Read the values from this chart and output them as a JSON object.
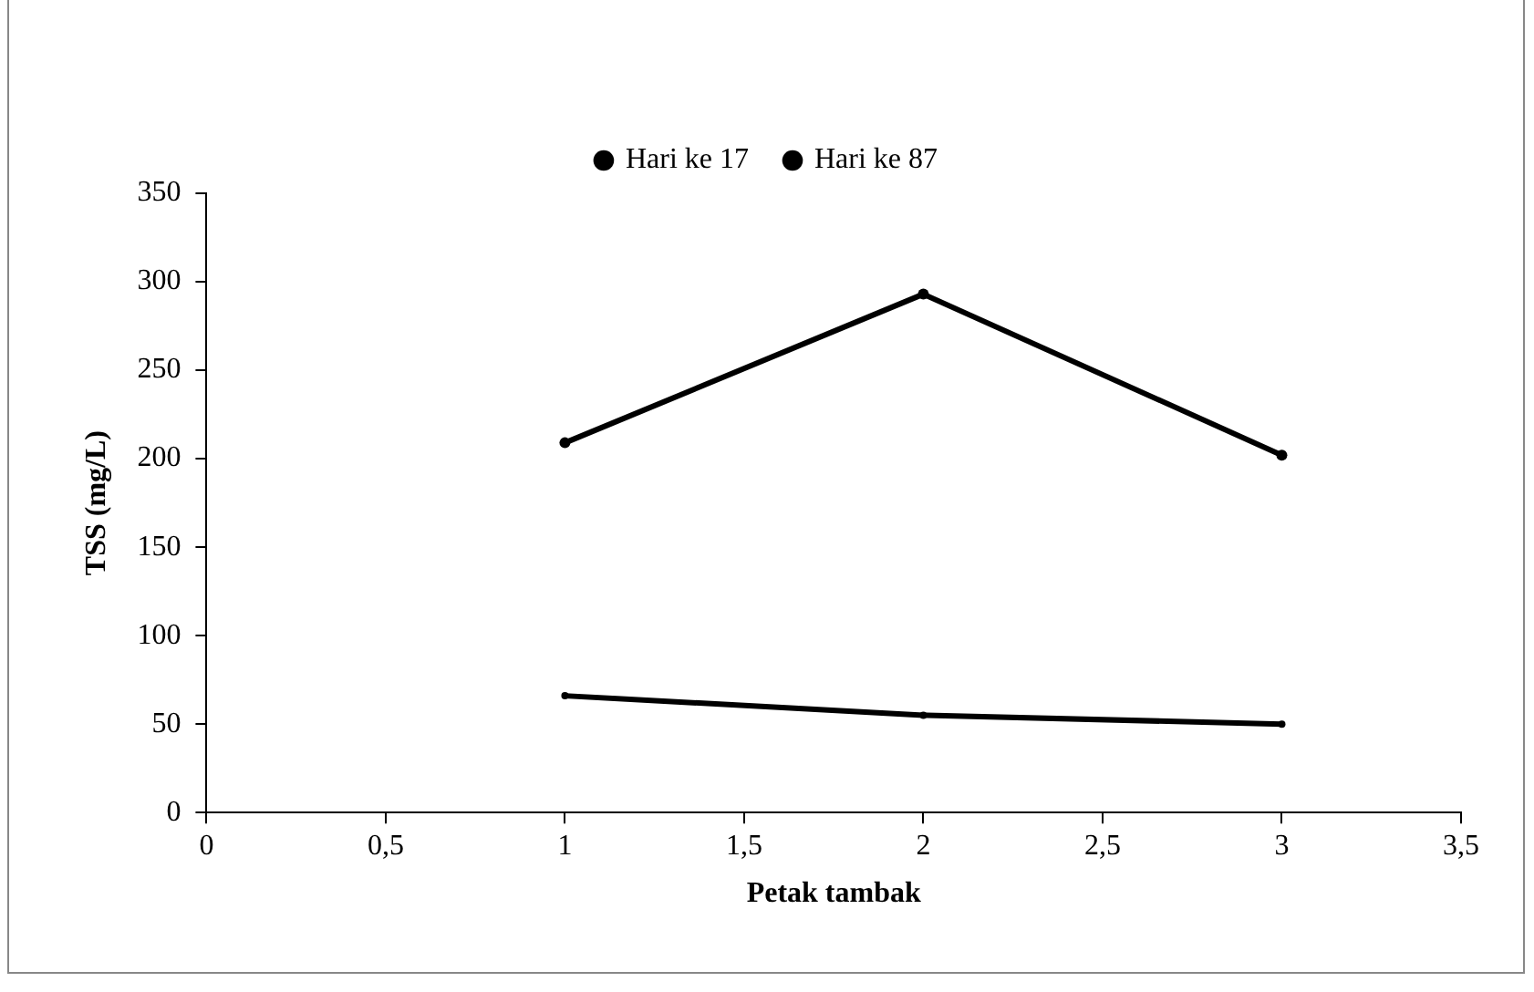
{
  "chart_data": {
    "type": "line",
    "xlabel": "Petak tambak",
    "ylabel": "TSS (mg/L)",
    "x": [
      1,
      2,
      3
    ],
    "series": [
      {
        "name": "Hari ke 17",
        "color": "#000000",
        "values": [
          66,
          55,
          50
        ]
      },
      {
        "name": "Hari ke 87",
        "color": "#000000",
        "values": [
          209,
          293,
          202
        ]
      }
    ],
    "xlim": [
      0,
      3.5
    ],
    "xticks": [
      0,
      {
        "value": 0.5,
        "label": "0,5"
      },
      1,
      {
        "value": 1.5,
        "label": "1,5"
      },
      2,
      {
        "value": 2.5,
        "label": "2,5"
      },
      3,
      {
        "value": 3.5,
        "label": "3,5"
      }
    ],
    "ylim": [
      0,
      350
    ],
    "yticks": [
      0,
      50,
      100,
      150,
      200,
      250,
      300,
      350
    ],
    "grid": false,
    "legend": "top",
    "marker": "circle",
    "line_style": "solid"
  }
}
